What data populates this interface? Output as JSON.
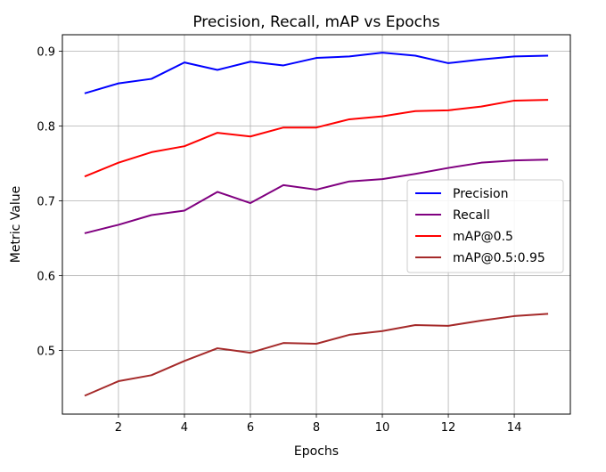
{
  "chart_data": {
    "type": "line",
    "title": "Precision, Recall, mAP vs Epochs",
    "xlabel": "Epochs",
    "ylabel": "Metric Value",
    "x": [
      1,
      2,
      3,
      4,
      5,
      6,
      7,
      8,
      9,
      10,
      11,
      12,
      13,
      14,
      15
    ],
    "xlim": [
      0.3,
      15.7
    ],
    "ylim": [
      0.415,
      0.922
    ],
    "xticks": [
      2,
      4,
      6,
      8,
      10,
      12,
      14
    ],
    "xtick_labels": [
      "2",
      "4",
      "6",
      "8",
      "10",
      "12",
      "14"
    ],
    "yticks": [
      0.5,
      0.6,
      0.7,
      0.8,
      0.9
    ],
    "ytick_labels": [
      "0.5",
      "0.6",
      "0.7",
      "0.8",
      "0.9"
    ],
    "grid": true,
    "legend_position": "center-right",
    "series": [
      {
        "name": "Precision",
        "color": "#0000ff",
        "values": [
          0.844,
          0.857,
          0.863,
          0.885,
          0.875,
          0.886,
          0.881,
          0.891,
          0.893,
          0.898,
          0.894,
          0.884,
          0.889,
          0.893,
          0.894
        ]
      },
      {
        "name": "Recall",
        "color": "#800080",
        "values": [
          0.657,
          0.668,
          0.681,
          0.687,
          0.712,
          0.697,
          0.721,
          0.715,
          0.726,
          0.729,
          0.736,
          0.744,
          0.751,
          0.754,
          0.755
        ]
      },
      {
        "name": "mAP@0.5",
        "color": "#ff0000",
        "values": [
          0.733,
          0.751,
          0.765,
          0.773,
          0.791,
          0.786,
          0.798,
          0.798,
          0.809,
          0.813,
          0.82,
          0.821,
          0.826,
          0.834,
          0.835
        ]
      },
      {
        "name": "mAP@0.5:0.95",
        "color": "#a52a2a",
        "values": [
          0.44,
          0.459,
          0.467,
          0.486,
          0.503,
          0.497,
          0.51,
          0.509,
          0.521,
          0.526,
          0.534,
          0.533,
          0.54,
          0.546,
          0.549
        ]
      }
    ]
  }
}
